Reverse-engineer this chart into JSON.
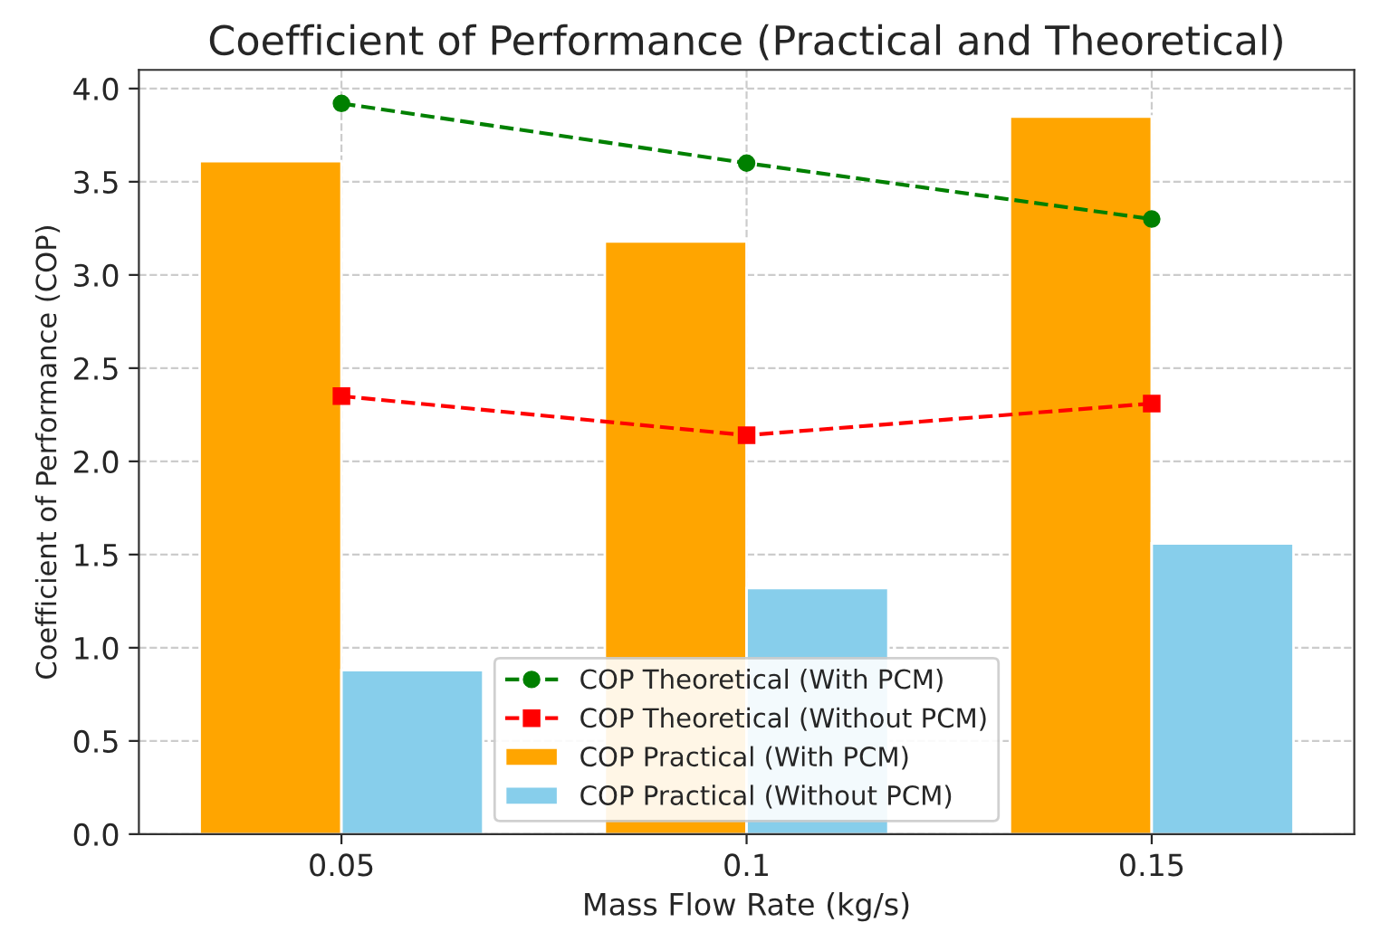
{
  "chart_data": {
    "type": "bar",
    "title": "Coefficient of Performance (Practical and Theoretical)",
    "xlabel": "Mass Flow Rate (kg/s)",
    "ylabel": "Coefficient of Performance (COP)",
    "categories": [
      "0.05",
      "0.1",
      "0.15"
    ],
    "series": [
      {
        "name": "COP Theoretical (With PCM)",
        "type": "line",
        "color": "#008000",
        "marker": "circle",
        "line_style": "dashed",
        "values": [
          3.92,
          3.6,
          3.3
        ]
      },
      {
        "name": "COP Theoretical (Without PCM)",
        "type": "line",
        "color": "#ff0000",
        "marker": "square",
        "line_style": "dashed",
        "values": [
          2.35,
          2.14,
          2.31
        ]
      },
      {
        "name": "COP Practical (With PCM)",
        "color": "#ffa500",
        "values": [
          3.61,
          3.18,
          3.85
        ]
      },
      {
        "name": "COP Practical (Without PCM)",
        "color": "#87ceeb",
        "values": [
          0.88,
          1.32,
          1.56
        ]
      }
    ],
    "ylim": [
      0,
      4.1
    ],
    "yticks": [
      {
        "value": 0,
        "label": "0.0"
      },
      {
        "value": 0.5,
        "label": "0.5"
      },
      {
        "value": 1,
        "label": "1.0"
      },
      {
        "value": 1.5,
        "label": "1.5"
      },
      {
        "value": 2,
        "label": "2.0"
      },
      {
        "value": 2.5,
        "label": "2.5"
      },
      {
        "value": 3,
        "label": "3.0"
      },
      {
        "value": 3.5,
        "label": "3.5"
      },
      {
        "value": 4,
        "label": "4.0"
      }
    ],
    "grid": true,
    "legend": "bottom"
  }
}
